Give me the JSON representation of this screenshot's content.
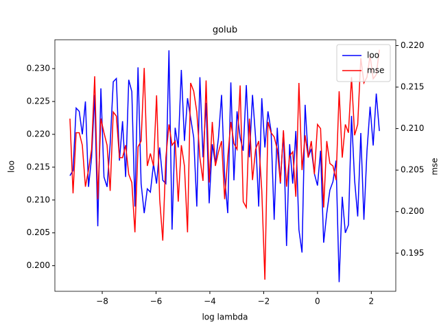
{
  "chart_data": {
    "type": "line",
    "title": "golub",
    "x_label": "log lambda",
    "y_label": "loo",
    "y2_label": "mse",
    "legend": "upper right",
    "x": [
      -9.2,
      -9.085,
      -8.97,
      -8.855,
      -8.74,
      -8.625,
      -8.51,
      -8.395,
      -8.28,
      -8.165,
      -8.05,
      -7.935,
      -7.82,
      -7.705,
      -7.59,
      -7.475,
      -7.36,
      -7.245,
      -7.13,
      -7.015,
      -6.9,
      -6.785,
      -6.67,
      -6.555,
      -6.44,
      -6.325,
      -6.21,
      -6.095,
      -5.98,
      -5.865,
      -5.75,
      -5.635,
      -5.52,
      -5.405,
      -5.29,
      -5.175,
      -5.06,
      -4.945,
      -4.83,
      -4.715,
      -4.6,
      -4.485,
      -4.37,
      -4.255,
      -4.14,
      -4.025,
      -3.91,
      -3.795,
      -3.68,
      -3.565,
      -3.45,
      -3.335,
      -3.22,
      -3.105,
      -2.99,
      -2.875,
      -2.76,
      -2.645,
      -2.53,
      -2.415,
      -2.3,
      -2.185,
      -2.07,
      -1.955,
      -1.84,
      -1.725,
      -1.61,
      -1.495,
      -1.38,
      -1.265,
      -1.15,
      -1.035,
      -0.92,
      -0.805,
      -0.69,
      -0.575,
      -0.46,
      -0.345,
      -0.23,
      -0.115,
      0,
      0.115,
      0.23,
      0.345,
      0.46,
      0.575,
      0.69,
      0.805,
      0.92,
      1.035,
      1.15,
      1.265,
      1.38,
      1.495,
      1.61,
      1.725,
      1.84,
      1.955,
      2.07,
      2.185,
      2.3
    ],
    "series": [
      {
        "name": "loo",
        "color": "#0000ff",
        "axis": "y",
        "values": [
          0.2137,
          0.2145,
          0.224,
          0.2235,
          0.22,
          0.225,
          0.212,
          0.2165,
          0.226,
          0.206,
          0.227,
          0.2135,
          0.212,
          0.2185,
          0.228,
          0.2285,
          0.216,
          0.222,
          0.2135,
          0.2283,
          0.2265,
          0.209,
          0.2302,
          0.2125,
          0.208,
          0.2117,
          0.2112,
          0.2155,
          0.2125,
          0.218,
          0.213,
          0.2125,
          0.2328,
          0.2055,
          0.221,
          0.218,
          0.2298,
          0.219,
          0.2255,
          0.2225,
          0.2195,
          0.209,
          0.2287,
          0.2165,
          0.2248,
          0.2095,
          0.2185,
          0.2155,
          0.2195,
          0.226,
          0.2135,
          0.208,
          0.2279,
          0.213,
          0.2235,
          0.2195,
          0.2175,
          0.2275,
          0.2165,
          0.226,
          0.2195,
          0.209,
          0.2255,
          0.218,
          0.2235,
          0.2205,
          0.207,
          0.221,
          0.2125,
          0.2205,
          0.203,
          0.2185,
          0.2125,
          0.2205,
          0.2055,
          0.202,
          0.2245,
          0.2165,
          0.2178,
          0.214,
          0.2122,
          0.2175,
          0.2035,
          0.208,
          0.2115,
          0.2128,
          0.216,
          0.1975,
          0.2105,
          0.205,
          0.2062,
          0.2228,
          0.213,
          0.2075,
          0.2202,
          0.207,
          0.2175,
          0.2242,
          0.2183,
          0.2262,
          0.2205
        ]
      },
      {
        "name": "mse",
        "color": "#ff0000",
        "axis": "y2",
        "values": [
          0.2112,
          0.2022,
          0.2095,
          0.2095,
          0.208,
          0.203,
          0.205,
          0.2075,
          0.2163,
          0.2015,
          0.2112,
          0.2095,
          0.208,
          0.2025,
          0.212,
          0.2115,
          0.2065,
          0.2065,
          0.208,
          0.2045,
          0.2035,
          0.1975,
          0.2078,
          0.2085,
          0.2173,
          0.2055,
          0.207,
          0.2055,
          0.214,
          0.2015,
          0.1965,
          0.2065,
          0.2105,
          0.208,
          0.2085,
          0.2012,
          0.208,
          0.2055,
          0.1975,
          0.2155,
          0.2145,
          0.212,
          0.2065,
          0.2037,
          0.2158,
          0.2035,
          0.2108,
          0.2055,
          0.2072,
          0.2085,
          0.2015,
          0.2065,
          0.2108,
          0.2082,
          0.2075,
          0.2152,
          0.2012,
          0.2005,
          0.2112,
          0.2038,
          0.2075,
          0.2085,
          0.2025,
          0.1918,
          0.2108,
          0.2095,
          0.209,
          0.2075,
          0.2035,
          0.2098,
          0.203,
          0.2067,
          0.2072,
          0.2018,
          0.2155,
          0.205,
          0.2092,
          0.2065,
          0.2085,
          0.2045,
          0.2105,
          0.21,
          0.2005,
          0.2085,
          0.2058,
          0.2055,
          0.2038,
          0.2145,
          0.2065,
          0.2105,
          0.2095,
          0.2162,
          0.2092,
          0.2105,
          0.2185,
          0.2155,
          0.2162,
          0.2188,
          0.216,
          0.2165,
          0.2195
        ]
      }
    ],
    "xlim": [
      -9.76,
      2.91
    ],
    "xticks": [
      {
        "value": -8,
        "label": "−8"
      },
      {
        "value": -6,
        "label": "−6"
      },
      {
        "value": -4,
        "label": "−4"
      },
      {
        "value": -2,
        "label": "−2"
      },
      0,
      2
    ],
    "ylim": [
      0.1961,
      0.2344
    ],
    "yticks": [
      {
        "value": 0.2,
        "label": "0.200"
      },
      {
        "value": 0.205,
        "label": "0.205"
      },
      {
        "value": 0.21,
        "label": "0.210"
      },
      {
        "value": 0.215,
        "label": "0.215"
      },
      {
        "value": 0.22,
        "label": "0.220"
      },
      {
        "value": 0.225,
        "label": "0.225"
      },
      {
        "value": 0.23,
        "label": "0.230"
      }
    ],
    "y2lim": [
      0.1904,
      0.2207
    ],
    "y2ticks": [
      {
        "value": 0.195,
        "label": "0.195"
      },
      {
        "value": 0.2,
        "label": "0.200"
      },
      {
        "value": 0.205,
        "label": "0.205"
      },
      {
        "value": 0.21,
        "label": "0.210"
      },
      {
        "value": 0.215,
        "label": "0.215"
      },
      {
        "value": 0.22,
        "label": "0.220"
      }
    ]
  }
}
